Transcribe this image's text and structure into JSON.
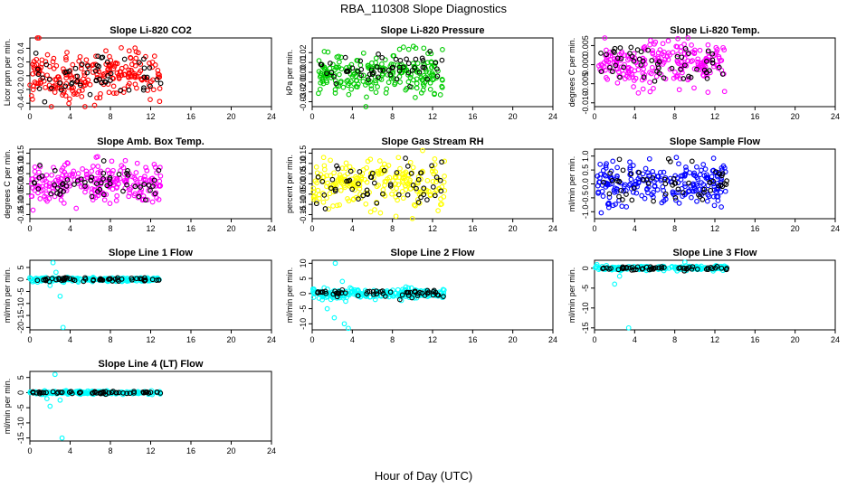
{
  "figure": {
    "title": "RBA_110308  Slope Diagnostics",
    "xlabel": "Hour of Day (UTC)"
  },
  "colors": {
    "red": "#ff0000",
    "green": "#00cc00",
    "magenta": "#ff00ff",
    "yellow": "#ffff00",
    "blue": "#0000ff",
    "cyan": "#00ffff",
    "black": "#000000"
  },
  "chart_data": [
    {
      "type": "scatter",
      "title": "Slope Li-820 CO2",
      "ylabel": "Licor ppm per min.",
      "xlim": [
        0,
        24
      ],
      "xticks": [
        0,
        4,
        8,
        12,
        16,
        20,
        24
      ],
      "ylim": [
        -0.45,
        0.55
      ],
      "yticks": [
        -0.4,
        -0.2,
        0.0,
        0.2,
        0.4
      ],
      "ytick_labels": [
        "-0.4",
        "-0.2",
        "0.0",
        "0.2",
        "0.4"
      ],
      "color": "red",
      "x_range": [
        0,
        13
      ],
      "spread": 0.22,
      "seed": 11
    },
    {
      "type": "scatter",
      "title": "Slope Li-820 Pressure",
      "ylabel": "kPa per min.",
      "xlim": [
        0,
        24
      ],
      "xticks": [
        0,
        4,
        8,
        12,
        16,
        20,
        24
      ],
      "ylim": [
        -0.035,
        0.035
      ],
      "yticks": [
        -0.03,
        -0.02,
        -0.01,
        0.0,
        0.01,
        0.02
      ],
      "ytick_labels": [
        "-0.03",
        "-0.02",
        "-0.01",
        "0.00",
        "0.01",
        "0.02"
      ],
      "color": "green",
      "x_range": [
        0.5,
        13
      ],
      "spread": 0.012,
      "seed": 23
    },
    {
      "type": "scatter",
      "title": "Slope Li-820 Temp.",
      "ylabel": "degrees C per min.",
      "xlim": [
        0,
        24
      ],
      "xticks": [
        0,
        4,
        8,
        12,
        16,
        20,
        24
      ],
      "ylim": [
        -0.011,
        0.007
      ],
      "yticks": [
        -0.01,
        -0.005,
        0.0,
        0.005
      ],
      "ytick_labels": [
        "-0.010",
        "-0.005",
        "0.000",
        "0.005"
      ],
      "color": "magenta",
      "x_range": [
        0.3,
        13
      ],
      "spread": 0.0035,
      "seed": 37
    },
    {
      "type": "scatter",
      "title": "Slope Amb. Box Temp.",
      "ylabel": "degrees C per min.",
      "xlim": [
        0,
        24
      ],
      "xticks": [
        0,
        4,
        8,
        12,
        16,
        20,
        24
      ],
      "ylim": [
        -0.17,
        0.17
      ],
      "yticks": [
        -0.15,
        -0.1,
        -0.05,
        0.0,
        0.05,
        0.1,
        0.15
      ],
      "ytick_labels": [
        "-0.15",
        "-0.10",
        "-0.05",
        "0.00",
        "0.05",
        "0.10",
        "0.15"
      ],
      "color": "magenta",
      "x_range": [
        0,
        13
      ],
      "spread": 0.06,
      "seed": 41
    },
    {
      "type": "scatter",
      "title": "Slope Gas Stream RH",
      "ylabel": "percent per min.",
      "xlim": [
        0,
        24
      ],
      "xticks": [
        0,
        4,
        8,
        12,
        16,
        20,
        24
      ],
      "ylim": [
        -0.17,
        0.17
      ],
      "yticks": [
        -0.15,
        -0.1,
        -0.05,
        0.0,
        0.05,
        0.1,
        0.15
      ],
      "ytick_labels": [
        "-0.15",
        "-0.10",
        "-0.05",
        "0.00",
        "0.05",
        "0.10",
        "0.15"
      ],
      "color": "yellow",
      "x_range": [
        0,
        13.2
      ],
      "spread": 0.07,
      "seed": 53
    },
    {
      "type": "scatter",
      "title": "Slope Sample Flow",
      "ylabel": "ml/min per min.",
      "xlim": [
        0,
        24
      ],
      "xticks": [
        0,
        4,
        8,
        12,
        16,
        20,
        24
      ],
      "ylim": [
        -1.25,
        1.25
      ],
      "yticks": [
        -1.0,
        -0.5,
        0.0,
        0.5,
        1.0
      ],
      "ytick_labels": [
        "-1.0",
        "-0.5",
        "0.0",
        "0.5",
        "1.0"
      ],
      "color": "blue",
      "x_range": [
        0.3,
        13.2
      ],
      "spread": 0.42,
      "seed": 67
    },
    {
      "type": "scatter",
      "title": "Slope Line 1 Flow",
      "ylabel": "ml/min per min.",
      "xlim": [
        0,
        24
      ],
      "xticks": [
        0,
        4,
        8,
        12,
        16,
        20,
        24
      ],
      "ylim": [
        -21,
        8
      ],
      "yticks": [
        -20,
        -15,
        -10,
        -5,
        0,
        5
      ],
      "ytick_labels": [
        "-20",
        "-15",
        "-10",
        "-5",
        "0",
        "5"
      ],
      "color": "cyan",
      "x_range": [
        0,
        13
      ],
      "spread": 0.5,
      "seed": 71,
      "outliers": [
        [
          2.3,
          7.0
        ],
        [
          2.0,
          -2.5
        ],
        [
          3.0,
          -7.0
        ],
        [
          3.3,
          -20.0
        ],
        [
          2.6,
          3.0
        ]
      ]
    },
    {
      "type": "scatter",
      "title": "Slope Line 2 Flow",
      "ylabel": "ml/min per min.",
      "xlim": [
        0,
        24
      ],
      "xticks": [
        0,
        4,
        8,
        12,
        16,
        20,
        24
      ],
      "ylim": [
        -12,
        11
      ],
      "yticks": [
        -10,
        -5,
        0,
        5,
        10
      ],
      "ytick_labels": [
        "-10",
        "-5",
        "0",
        "5",
        "10"
      ],
      "color": "cyan",
      "x_range": [
        0,
        13.2
      ],
      "spread": 0.9,
      "seed": 83,
      "outliers": [
        [
          2.3,
          10.0
        ],
        [
          3.0,
          4.0
        ],
        [
          3.2,
          -10.0
        ],
        [
          3.6,
          -11.5
        ],
        [
          1.5,
          -5.0
        ],
        [
          2.2,
          -8.0
        ]
      ]
    },
    {
      "type": "scatter",
      "title": "Slope Line 3 Flow",
      "ylabel": "ml/min per min.",
      "xlim": [
        0,
        24
      ],
      "xticks": [
        0,
        4,
        8,
        12,
        16,
        20,
        24
      ],
      "ylim": [
        -15.5,
        2
      ],
      "yticks": [
        -15,
        -10,
        -5,
        0
      ],
      "ytick_labels": [
        "-15",
        "-10",
        "-5",
        "0"
      ],
      "color": "cyan",
      "x_range": [
        0,
        13.2
      ],
      "spread": 0.35,
      "seed": 97,
      "outliers": [
        [
          3.4,
          -15.0
        ],
        [
          2.0,
          -4.0
        ],
        [
          2.5,
          -2.0
        ],
        [
          9.0,
          1.5
        ]
      ]
    },
    {
      "type": "scatter",
      "title": "Slope Line 4 (LT) Flow",
      "ylabel": "ml/min per min.",
      "xlim": [
        0,
        24
      ],
      "xticks": [
        0,
        4,
        8,
        12,
        16,
        20,
        24
      ],
      "ylim": [
        -16,
        7
      ],
      "yticks": [
        -15,
        -10,
        -5,
        0,
        5
      ],
      "ytick_labels": [
        "-15",
        "-10",
        "-5",
        "0",
        "5"
      ],
      "color": "cyan",
      "x_range": [
        0,
        13
      ],
      "spread": 0.3,
      "seed": 101,
      "outliers": [
        [
          2.5,
          6.0
        ],
        [
          2.0,
          -4.5
        ],
        [
          3.2,
          -15.0
        ],
        [
          3.0,
          -2.5
        ],
        [
          1.7,
          -2.0
        ]
      ]
    }
  ]
}
